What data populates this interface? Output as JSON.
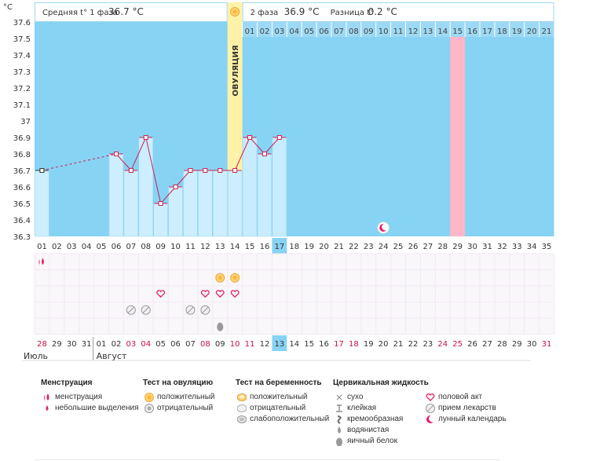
{
  "chart_data": {
    "type": "line",
    "y_unit": "°C",
    "ylim": [
      36.3,
      37.6
    ],
    "y_ticks": [
      "37.6",
      "37.5",
      "37.4",
      "37.3",
      "37.2",
      "37.1",
      "37",
      "36.9",
      "36.8",
      "36.7",
      "36.6",
      "36.5",
      "36.4",
      "36.3"
    ],
    "header": {
      "phase1_label": "Средняя t° 1 фаза",
      "phase1_value": "36.7 °C",
      "phase2_label": "2 фаза",
      "phase2_value": "36.9 °C",
      "diff_label": "Разница t°",
      "diff_value": "0.2 °C"
    },
    "ovulation_label": "ОВУЛЯЦИЯ",
    "phase2_days": [
      "01",
      "02",
      "03",
      "04",
      "05",
      "06",
      "07",
      "08",
      "09",
      "10",
      "11",
      "12",
      "13",
      "14",
      "15",
      "16",
      "17",
      "18",
      "19",
      "20",
      "21"
    ],
    "cycle_days": [
      "01",
      "02",
      "03",
      "04",
      "05",
      "06",
      "07",
      "08",
      "09",
      "10",
      "11",
      "12",
      "13",
      "14",
      "15",
      "16",
      "17",
      "18",
      "19",
      "20",
      "21",
      "22",
      "23",
      "24",
      "25",
      "26",
      "27",
      "28",
      "29",
      "30",
      "31",
      "32",
      "33",
      "34",
      "35"
    ],
    "dates": [
      "28",
      "29",
      "30",
      "31",
      "01",
      "02",
      "03",
      "04",
      "05",
      "06",
      "07",
      "08",
      "09",
      "10",
      "11",
      "12",
      "13",
      "14",
      "15",
      "16",
      "17",
      "18",
      "19",
      "20",
      "21",
      "22",
      "23",
      "24",
      "25",
      "26",
      "27",
      "28",
      "29",
      "30",
      "31"
    ],
    "date_red": [
      true,
      false,
      false,
      false,
      false,
      false,
      true,
      true,
      false,
      false,
      false,
      true,
      false,
      true,
      true,
      false,
      false,
      false,
      false,
      false,
      true,
      true,
      false,
      false,
      false,
      false,
      false,
      true,
      true,
      false,
      false,
      false,
      false,
      false,
      true
    ],
    "months": [
      {
        "label": "Июль"
      },
      {
        "label": "Август"
      }
    ],
    "temperatures": [
      36.7,
      null,
      null,
      null,
      null,
      36.8,
      36.7,
      36.9,
      36.5,
      36.6,
      36.7,
      36.7,
      36.7,
      36.7,
      36.9,
      36.8,
      36.9
    ],
    "ovulation_day": 14,
    "predicted_day": 29,
    "highlight_day": 17,
    "highlight_date": "13",
    "moon_day": 24,
    "markers": [
      {
        "row": 0,
        "day": 1,
        "icon": "menstruation-icon"
      },
      {
        "row": 1,
        "day": 13,
        "icon": "ovulation-positive-icon"
      },
      {
        "row": 1,
        "day": 14,
        "icon": "ovulation-positive-icon"
      },
      {
        "row": 2,
        "day": 9,
        "icon": "heart-icon"
      },
      {
        "row": 2,
        "day": 12,
        "icon": "heart-icon"
      },
      {
        "row": 2,
        "day": 13,
        "icon": "heart-icon"
      },
      {
        "row": 2,
        "day": 14,
        "icon": "heart-icon"
      },
      {
        "row": 3,
        "day": 7,
        "icon": "pill-icon"
      },
      {
        "row": 3,
        "day": 8,
        "icon": "pill-icon"
      },
      {
        "row": 3,
        "day": 11,
        "icon": "pill-icon"
      },
      {
        "row": 3,
        "day": 12,
        "icon": "pill-icon"
      },
      {
        "row": 4,
        "day": 13,
        "icon": "drop-icon"
      }
    ],
    "colors": {
      "phase1": "#cceeff",
      "phase2": "#c8ecff",
      "background": "#87d3f3",
      "line": "#cc2255",
      "ovulation": "#fff2a8",
      "predicted": "#ffb6c8",
      "highlight": "#87d3f3",
      "red_date": "#cc1144"
    }
  },
  "legend": {
    "groups": [
      {
        "title": "Менструация",
        "items": [
          {
            "label": "менструация",
            "icon": "menstruation-icon"
          },
          {
            "label": "небольшие выделения",
            "icon": "spotting-icon"
          }
        ]
      },
      {
        "title": "Тест на овуляцию",
        "items": [
          {
            "label": "положительный",
            "icon": "ovulation-positive-icon"
          },
          {
            "label": "отрицательный",
            "icon": "ovulation-negative-icon"
          }
        ]
      },
      {
        "title": "Тест на беременность",
        "items": [
          {
            "label": "положительный",
            "icon": "pregnancy-positive-icon"
          },
          {
            "label": "отрицательный",
            "icon": "pregnancy-negative-icon"
          },
          {
            "label": "слабоположительный",
            "icon": "pregnancy-weak-icon"
          }
        ]
      },
      {
        "title": "Цервикальная жидкость",
        "items": [
          {
            "label": "сухо",
            "icon": "dry-icon"
          },
          {
            "label": "клейкая",
            "icon": "sticky-icon"
          },
          {
            "label": "кремообразная",
            "icon": "creamy-icon"
          },
          {
            "label": "водянистая",
            "icon": "watery-icon"
          },
          {
            "label": "яичный белок",
            "icon": "eggwhite-icon"
          }
        ]
      },
      {
        "title": "",
        "items": [
          {
            "label": "половой акт",
            "icon": "heart-icon"
          },
          {
            "label": "прием лекарств",
            "icon": "pill-icon"
          },
          {
            "label": "лунный календарь",
            "icon": "moon-icon"
          }
        ]
      }
    ]
  }
}
